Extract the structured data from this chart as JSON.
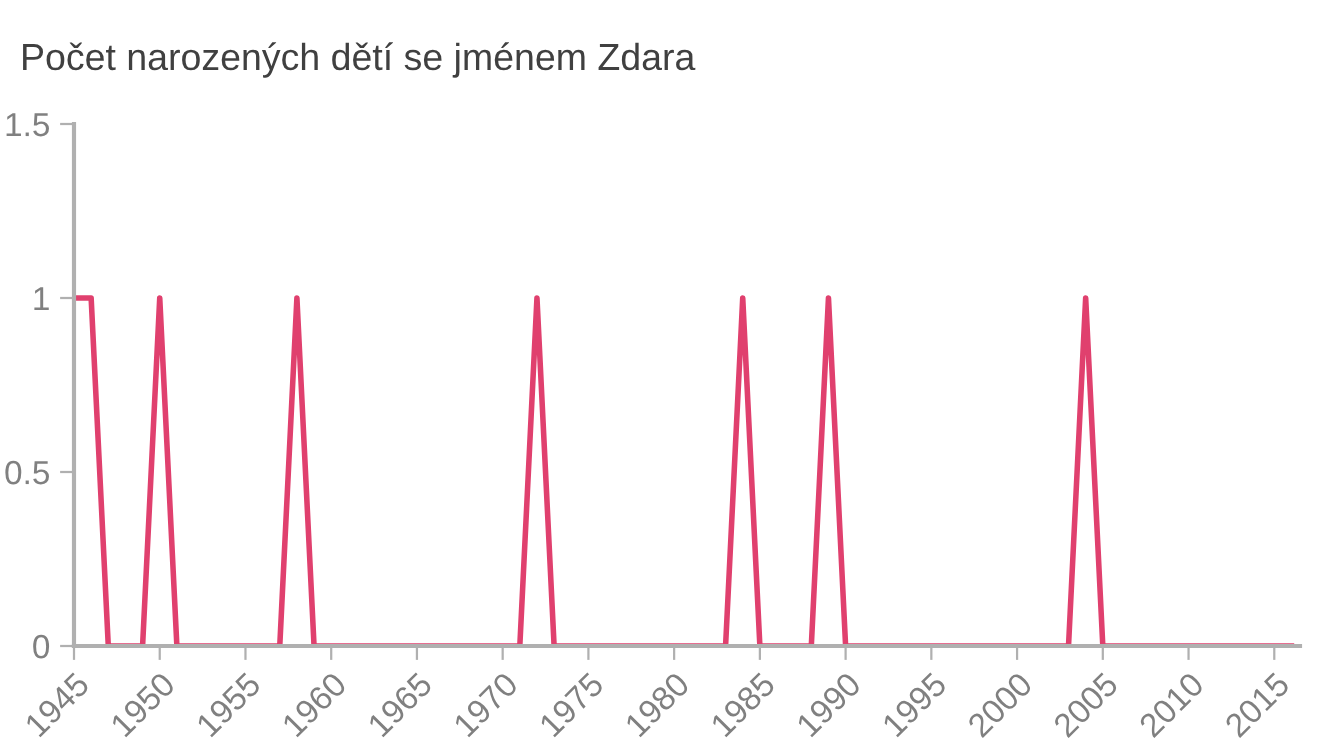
{
  "chart_data": {
    "type": "line",
    "title": "Počet narozených dětí se jménem Zdara",
    "x": [
      1945,
      1946,
      1947,
      1948,
      1949,
      1950,
      1951,
      1952,
      1953,
      1954,
      1955,
      1956,
      1957,
      1958,
      1959,
      1960,
      1961,
      1962,
      1963,
      1964,
      1965,
      1966,
      1967,
      1968,
      1969,
      1970,
      1971,
      1972,
      1973,
      1974,
      1975,
      1976,
      1977,
      1978,
      1979,
      1980,
      1981,
      1982,
      1983,
      1984,
      1985,
      1986,
      1987,
      1988,
      1989,
      1990,
      1991,
      1992,
      1993,
      1994,
      1995,
      1996,
      1997,
      1998,
      1999,
      2000,
      2001,
      2002,
      2003,
      2004,
      2005,
      2006,
      2007,
      2008,
      2009,
      2010,
      2011,
      2012,
      2013,
      2014,
      2015,
      2016
    ],
    "series": [
      {
        "color": "#e0406e",
        "values": [
          1,
          1,
          0,
          0,
          0,
          1,
          0,
          0,
          0,
          0,
          0,
          0,
          0,
          1,
          0,
          0,
          0,
          0,
          0,
          0,
          0,
          0,
          0,
          0,
          0,
          0,
          0,
          1,
          0,
          0,
          0,
          0,
          0,
          0,
          0,
          0,
          0,
          0,
          0,
          1,
          0,
          0,
          0,
          0,
          1,
          0,
          0,
          0,
          0,
          0,
          0,
          0,
          0,
          0,
          0,
          0,
          0,
          0,
          0,
          1,
          0,
          0,
          0,
          0,
          0,
          0,
          0,
          0,
          0,
          0,
          0,
          0
        ]
      }
    ],
    "xlim": [
      1945,
      2016.5
    ],
    "xticks": [
      1945,
      1950,
      1955,
      1960,
      1965,
      1970,
      1975,
      1980,
      1985,
      1990,
      1995,
      2000,
      2005,
      2010,
      2015
    ],
    "ylim": [
      0,
      1.5
    ],
    "yticks": [
      0,
      0.5,
      1,
      1.5
    ],
    "grid": false,
    "legend": false,
    "marker": "none",
    "line_style": "solid"
  }
}
